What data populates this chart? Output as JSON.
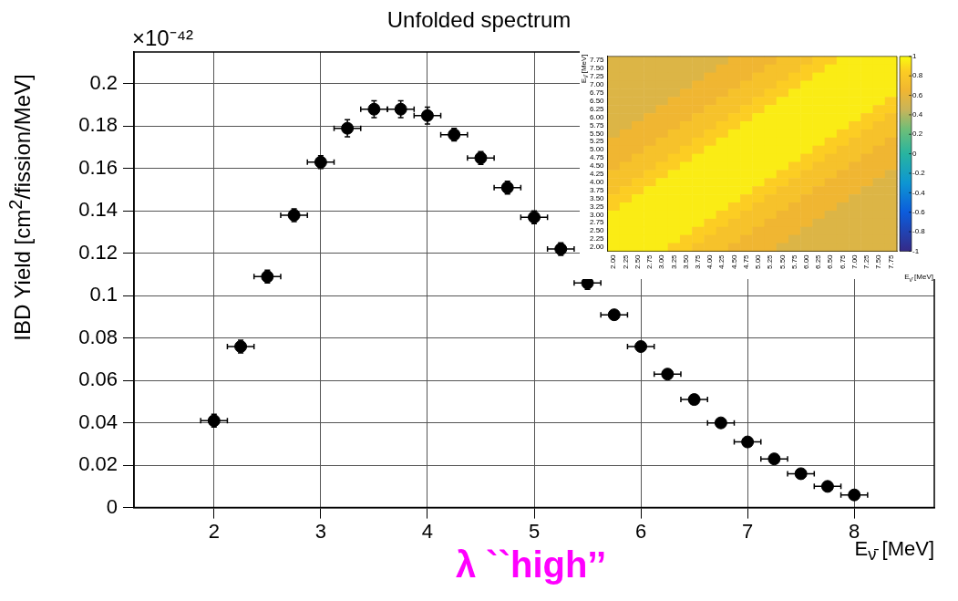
{
  "chart_data": [
    {
      "type": "scatter",
      "title": "Unfolded spectrum",
      "xlabel": "E$_{ν̄}$ [MeV]",
      "ylabel": "IBD Yield [cm$^{2}$/fission/MeV]",
      "x": [
        2,
        2.25,
        2.5,
        2.75,
        3,
        3.25,
        3.5,
        3.75,
        4,
        4.25,
        4.5,
        4.75,
        5,
        5.25,
        5.5,
        5.75,
        6,
        6.25,
        6.5,
        6.75,
        7,
        7.25,
        7.5,
        7.75,
        8
      ],
      "series": [
        {
          "color": "#000000",
          "values": [
            0.041,
            0.076,
            0.109,
            0.138,
            0.163,
            0.179,
            0.188,
            0.188,
            0.185,
            0.176,
            0.165,
            0.151,
            0.137,
            0.122,
            0.106,
            0.091,
            0.076,
            0.063,
            0.051,
            0.04,
            0.031,
            0.023,
            0.016,
            0.01,
            0.006
          ],
          "errors": [
            0.003,
            0.003,
            0.003,
            0.003,
            0.003,
            0.004,
            0.004,
            0.004,
            0.004,
            0.003,
            0.003,
            0.003,
            0.003,
            0.003,
            0.003,
            null,
            null,
            null,
            null,
            null,
            null,
            null,
            null,
            null,
            null
          ],
          "xerrors": [
            0.125,
            0.125,
            0.125,
            0.125,
            0.125,
            0.125,
            0.125,
            0.125,
            0.125,
            0.125,
            0.125,
            0.125,
            0.125,
            0.125,
            0.125,
            0.125,
            0.125,
            0.125,
            0.125,
            0.125,
            0.125,
            0.125,
            0.125,
            0.125,
            0.125
          ]
        }
      ],
      "xlim": [
        1.25,
        8.75
      ],
      "xticks": [
        2,
        3,
        4,
        5,
        6,
        7,
        8
      ],
      "ylim": [
        0,
        0.215
      ],
      "yticks": [
        0,
        0.02,
        0.04,
        0.06,
        0.08,
        0.1,
        0.12,
        0.14,
        0.16,
        0.18,
        0.2
      ],
      "grid": true,
      "marker": "circle",
      "legend": false,
      "annotations": [
        "×10⁻⁴²",
        "λ ``high’’"
      ]
    },
    {
      "type": "heatmap",
      "xlabel": "E$_{ν̄}$ [MeV]",
      "ylabel": "E$_{ν̄}$ [MeV]",
      "categories": [
        "2.00",
        "2.25",
        "2.50",
        "2.75",
        "3.00",
        "3.25",
        "3.50",
        "3.75",
        "4.00",
        "4.25",
        "4.50",
        "4.75",
        "5.00",
        "5.25",
        "5.50",
        "5.75",
        "6.00",
        "6.25",
        "6.50",
        "6.75",
        "7.00",
        "7.25",
        "7.50",
        "7.75"
      ],
      "y_categories": [
        "7.75",
        "7.50",
        "7.25",
        "7.00",
        "6.75",
        "6.50",
        "6.25",
        "6.00",
        "5.75",
        "5.50",
        "5.25",
        "5.00",
        "4.75",
        "4.50",
        "4.25",
        "4.00",
        "3.75",
        "3.50",
        "3.25",
        "3.00",
        "2.75",
        "2.50",
        "2.25",
        "2.00"
      ],
      "clim": [
        -1,
        1
      ],
      "cticks": [
        -1,
        -0.8,
        -0.6,
        -0.4,
        -0.2,
        0,
        0.2,
        0.4,
        0.6,
        0.8,
        1
      ],
      "cells": [
        [
          0.55,
          0.55,
          0.55,
          0.55,
          0.55,
          0.55,
          0.55,
          0.55,
          0.55,
          0.55,
          0.65,
          0.65,
          0.65,
          0.65,
          0.75,
          0.75,
          0.75,
          0.85,
          0.85,
          0.95,
          0.95,
          0.95,
          0.95,
          0.95
        ],
        [
          0.55,
          0.55,
          0.55,
          0.55,
          0.55,
          0.55,
          0.55,
          0.55,
          0.55,
          0.65,
          0.65,
          0.65,
          0.65,
          0.75,
          0.75,
          0.75,
          0.85,
          0.85,
          0.95,
          0.95,
          0.95,
          0.95,
          0.95,
          0.95
        ],
        [
          0.55,
          0.55,
          0.55,
          0.55,
          0.55,
          0.55,
          0.55,
          0.55,
          0.65,
          0.65,
          0.65,
          0.65,
          0.75,
          0.75,
          0.75,
          0.85,
          0.85,
          0.95,
          0.95,
          0.95,
          0.95,
          0.95,
          0.95,
          0.95
        ],
        [
          0.55,
          0.55,
          0.55,
          0.55,
          0.55,
          0.55,
          0.55,
          0.65,
          0.65,
          0.65,
          0.65,
          0.75,
          0.75,
          0.75,
          0.85,
          0.85,
          0.95,
          0.95,
          0.95,
          0.95,
          0.95,
          0.95,
          0.95,
          0.95
        ],
        [
          0.55,
          0.55,
          0.55,
          0.55,
          0.55,
          0.55,
          0.65,
          0.65,
          0.65,
          0.65,
          0.75,
          0.75,
          0.75,
          0.85,
          0.85,
          0.95,
          0.95,
          0.95,
          0.95,
          0.95,
          0.95,
          0.95,
          0.95,
          0.95
        ],
        [
          0.55,
          0.55,
          0.55,
          0.55,
          0.55,
          0.65,
          0.65,
          0.65,
          0.65,
          0.75,
          0.75,
          0.75,
          0.85,
          0.85,
          0.95,
          0.95,
          0.95,
          0.95,
          0.95,
          0.95,
          0.95,
          0.95,
          0.95,
          0.85
        ],
        [
          0.55,
          0.55,
          0.55,
          0.55,
          0.65,
          0.65,
          0.65,
          0.65,
          0.75,
          0.75,
          0.75,
          0.85,
          0.85,
          0.95,
          0.95,
          0.95,
          0.95,
          0.95,
          0.95,
          0.95,
          0.95,
          0.95,
          0.85,
          0.85
        ],
        [
          0.55,
          0.55,
          0.55,
          0.65,
          0.65,
          0.65,
          0.65,
          0.75,
          0.75,
          0.75,
          0.85,
          0.85,
          0.95,
          0.95,
          0.95,
          0.95,
          0.95,
          0.95,
          0.95,
          0.95,
          0.95,
          0.85,
          0.85,
          0.75
        ],
        [
          0.55,
          0.55,
          0.65,
          0.65,
          0.65,
          0.65,
          0.75,
          0.75,
          0.75,
          0.85,
          0.85,
          0.95,
          0.95,
          0.95,
          0.95,
          0.95,
          0.95,
          0.95,
          0.95,
          0.95,
          0.85,
          0.85,
          0.75,
          0.75
        ],
        [
          0.55,
          0.65,
          0.65,
          0.65,
          0.65,
          0.75,
          0.75,
          0.75,
          0.85,
          0.85,
          0.95,
          0.95,
          0.95,
          0.95,
          0.95,
          0.95,
          0.95,
          0.95,
          0.95,
          0.85,
          0.85,
          0.75,
          0.75,
          0.75
        ],
        [
          0.65,
          0.65,
          0.65,
          0.65,
          0.75,
          0.75,
          0.75,
          0.85,
          0.85,
          0.95,
          0.95,
          0.95,
          0.95,
          0.95,
          0.95,
          0.95,
          0.95,
          0.95,
          0.85,
          0.85,
          0.75,
          0.75,
          0.75,
          0.65
        ],
        [
          0.65,
          0.65,
          0.65,
          0.75,
          0.75,
          0.75,
          0.85,
          0.85,
          0.95,
          0.95,
          0.95,
          0.95,
          0.95,
          0.95,
          0.95,
          0.95,
          0.95,
          0.85,
          0.85,
          0.75,
          0.75,
          0.75,
          0.65,
          0.65
        ],
        [
          0.65,
          0.65,
          0.75,
          0.75,
          0.75,
          0.85,
          0.85,
          0.95,
          0.95,
          0.95,
          0.95,
          0.95,
          0.95,
          0.95,
          0.95,
          0.95,
          0.85,
          0.85,
          0.75,
          0.75,
          0.75,
          0.65,
          0.65,
          0.65
        ],
        [
          0.65,
          0.75,
          0.75,
          0.75,
          0.85,
          0.85,
          0.95,
          0.95,
          0.95,
          0.95,
          0.95,
          0.95,
          0.95,
          0.95,
          0.95,
          0.85,
          0.85,
          0.75,
          0.75,
          0.75,
          0.65,
          0.65,
          0.65,
          0.65
        ],
        [
          0.75,
          0.75,
          0.75,
          0.85,
          0.85,
          0.95,
          0.95,
          0.95,
          0.95,
          0.95,
          0.95,
          0.95,
          0.95,
          0.95,
          0.85,
          0.85,
          0.75,
          0.75,
          0.75,
          0.65,
          0.65,
          0.65,
          0.65,
          0.55
        ],
        [
          0.75,
          0.75,
          0.85,
          0.85,
          0.95,
          0.95,
          0.95,
          0.95,
          0.95,
          0.95,
          0.95,
          0.95,
          0.95,
          0.85,
          0.85,
          0.75,
          0.75,
          0.75,
          0.65,
          0.65,
          0.65,
          0.65,
          0.55,
          0.55
        ],
        [
          0.75,
          0.85,
          0.85,
          0.95,
          0.95,
          0.95,
          0.95,
          0.95,
          0.95,
          0.95,
          0.95,
          0.95,
          0.85,
          0.85,
          0.75,
          0.75,
          0.75,
          0.65,
          0.65,
          0.65,
          0.65,
          0.55,
          0.55,
          0.55
        ],
        [
          0.85,
          0.85,
          0.95,
          0.95,
          0.95,
          0.95,
          0.95,
          0.95,
          0.95,
          0.95,
          0.95,
          0.85,
          0.85,
          0.75,
          0.75,
          0.75,
          0.65,
          0.65,
          0.65,
          0.65,
          0.55,
          0.55,
          0.55,
          0.55
        ],
        [
          0.85,
          0.95,
          0.95,
          0.95,
          0.95,
          0.95,
          0.95,
          0.95,
          0.95,
          0.95,
          0.85,
          0.85,
          0.75,
          0.75,
          0.75,
          0.65,
          0.65,
          0.65,
          0.65,
          0.55,
          0.55,
          0.55,
          0.55,
          0.55
        ],
        [
          0.95,
          0.95,
          0.95,
          0.95,
          0.95,
          0.95,
          0.95,
          0.95,
          0.95,
          0.85,
          0.85,
          0.75,
          0.75,
          0.75,
          0.65,
          0.65,
          0.65,
          0.65,
          0.55,
          0.55,
          0.55,
          0.55,
          0.55,
          0.55
        ],
        [
          0.95,
          0.95,
          0.95,
          0.95,
          0.95,
          0.95,
          0.95,
          0.95,
          0.85,
          0.85,
          0.75,
          0.75,
          0.75,
          0.65,
          0.65,
          0.65,
          0.65,
          0.55,
          0.55,
          0.55,
          0.55,
          0.55,
          0.55,
          0.55
        ],
        [
          0.95,
          0.95,
          0.95,
          0.95,
          0.95,
          0.95,
          0.95,
          0.85,
          0.85,
          0.75,
          0.75,
          0.75,
          0.65,
          0.65,
          0.65,
          0.65,
          0.55,
          0.55,
          0.55,
          0.55,
          0.55,
          0.55,
          0.55,
          0.55
        ],
        [
          0.95,
          0.95,
          0.95,
          0.95,
          0.95,
          0.95,
          0.85,
          0.85,
          0.75,
          0.75,
          0.75,
          0.65,
          0.65,
          0.65,
          0.65,
          0.55,
          0.55,
          0.55,
          0.55,
          0.55,
          0.55,
          0.55,
          0.55,
          0.55
        ],
        [
          0.95,
          0.95,
          0.95,
          0.95,
          0.95,
          0.85,
          0.85,
          0.75,
          0.75,
          0.75,
          0.65,
          0.65,
          0.65,
          0.65,
          0.55,
          0.55,
          0.55,
          0.55,
          0.55,
          0.55,
          0.55,
          0.55,
          0.55,
          0.55
        ]
      ]
    }
  ]
}
